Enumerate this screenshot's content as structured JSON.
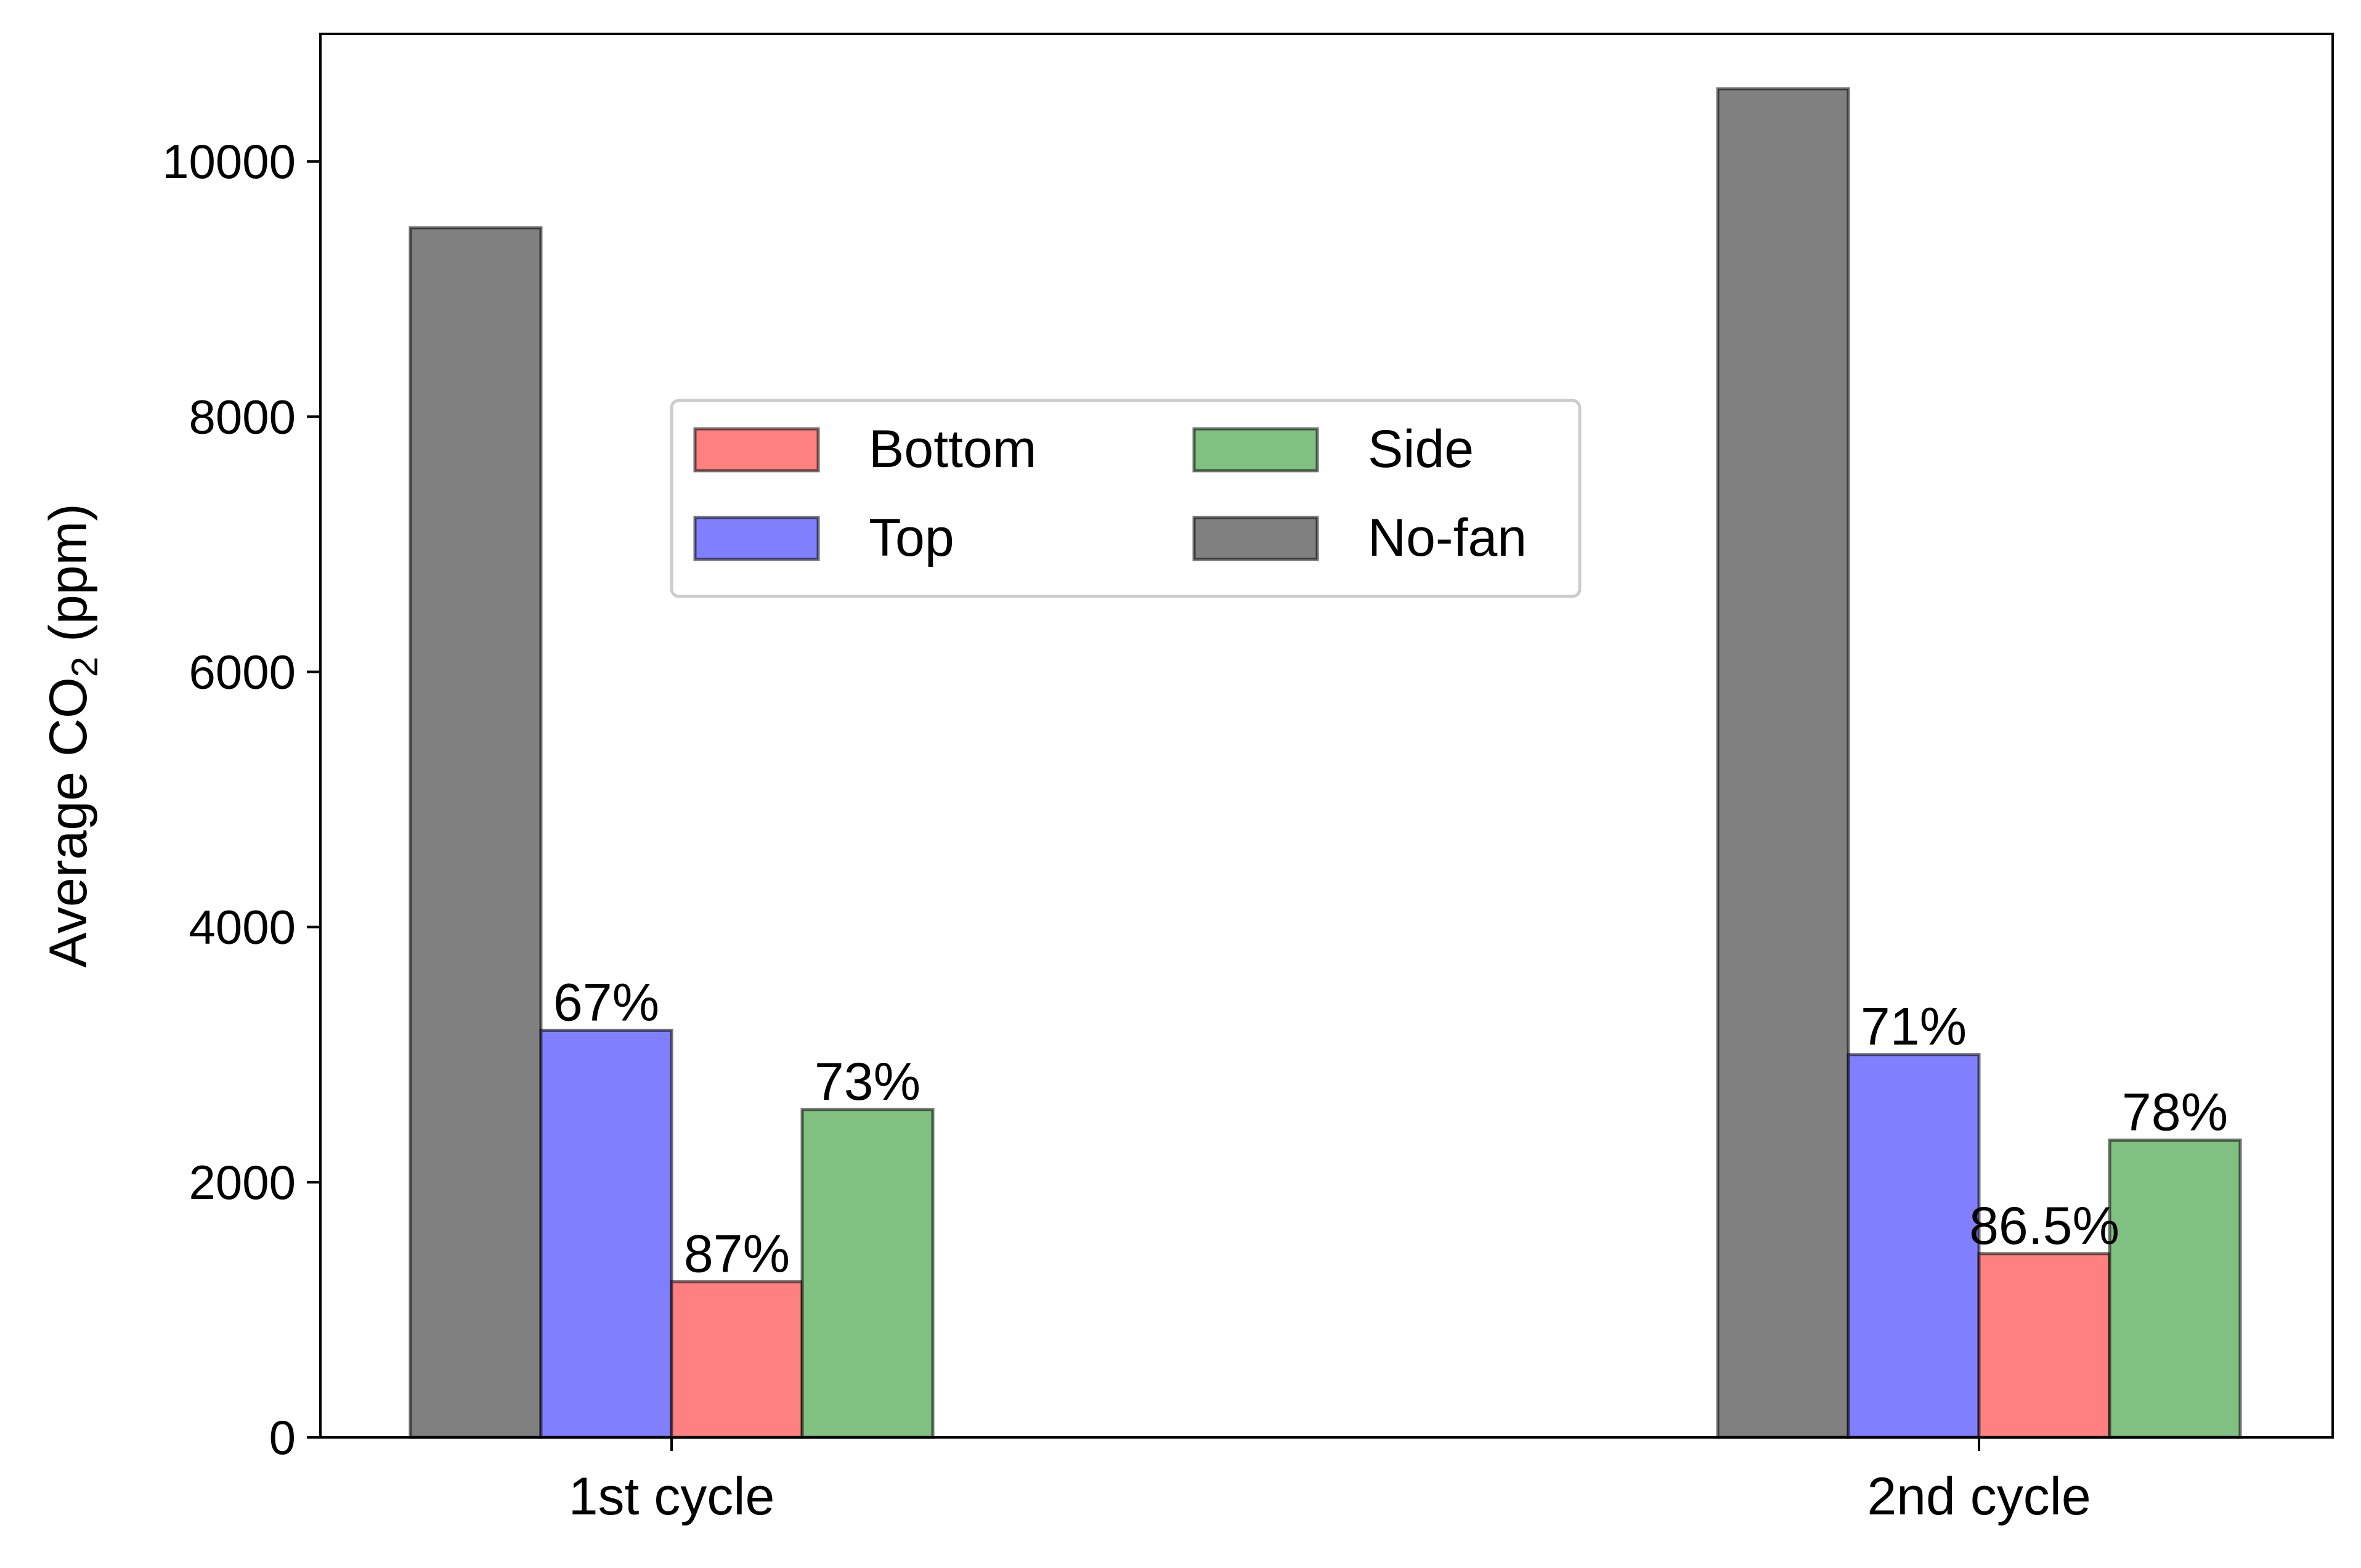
{
  "chart_data": {
    "type": "bar",
    "title": "",
    "xlabel": "",
    "ylabel": "Average CO",
    "ylabel_subscript": "2",
    "ylabel_suffix": " (ppm)",
    "categories": [
      "1st cycle",
      "2nd cycle"
    ],
    "ylim": [
      0,
      11000
    ],
    "yticks": [
      0,
      2000,
      4000,
      6000,
      8000,
      10000
    ],
    "grid": false,
    "legend_position": "upper-center",
    "series": [
      {
        "name": "No-fan",
        "color": "#808080",
        "values": [
          9480,
          10570
        ],
        "labels": [
          "",
          ""
        ]
      },
      {
        "name": "Top",
        "color": "#8080ff",
        "values": [
          3190,
          3000
        ],
        "labels": [
          "67%",
          "71%"
        ]
      },
      {
        "name": "Bottom",
        "color": "#ff8080",
        "values": [
          1220,
          1440
        ],
        "labels": [
          "87%",
          "86.5%"
        ]
      },
      {
        "name": "Side",
        "color": "#80c080",
        "values": [
          2570,
          2330
        ],
        "labels": [
          "73%",
          "78%"
        ]
      }
    ],
    "legend_order": [
      "Bottom",
      "Side",
      "Top",
      "No-fan"
    ]
  }
}
